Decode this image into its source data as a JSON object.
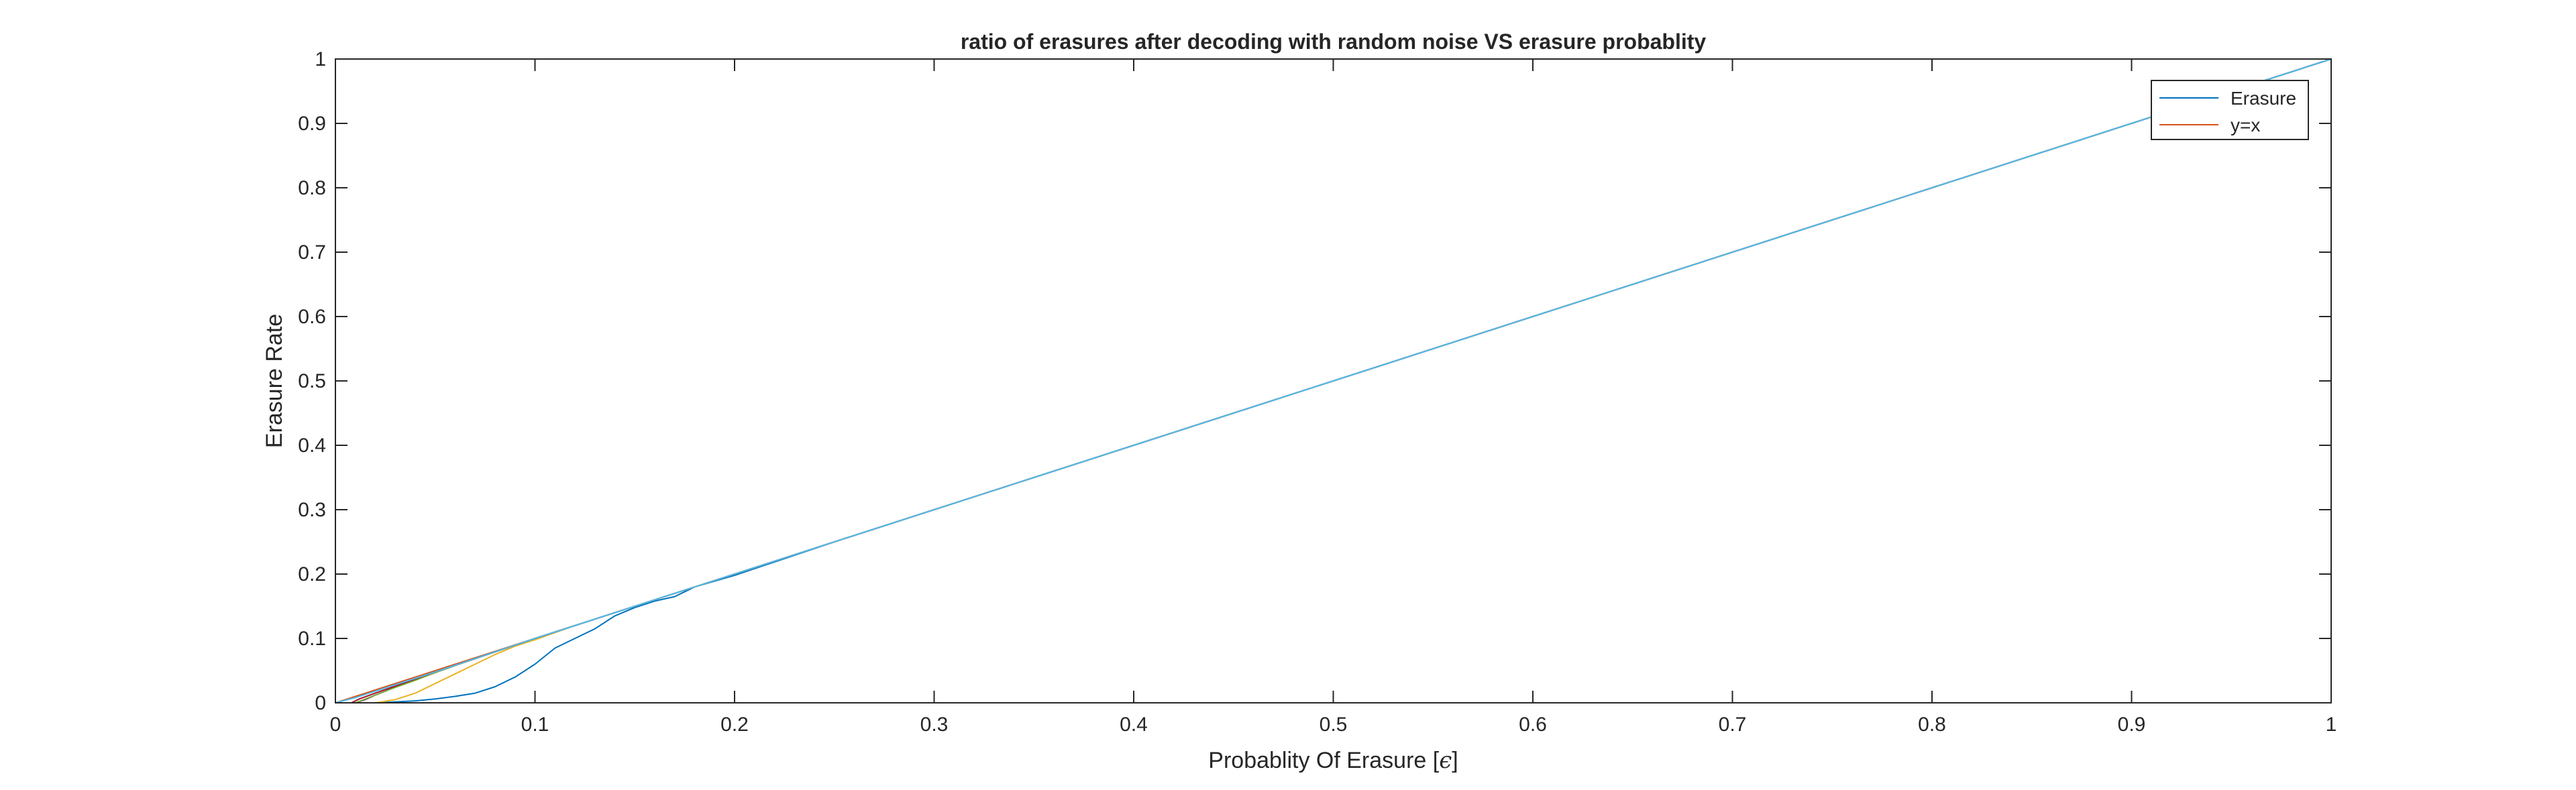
{
  "chart_data": {
    "type": "line",
    "title": "ratio of erasures after decoding with random noise VS erasure probablity",
    "xlabel": "Probablity Of Erasure [ε]",
    "xlabel_main": "Probablity Of Erasure [",
    "xlabel_symbol": "ϵ",
    "xlabel_end": "]",
    "ylabel": "Erasure Rate",
    "xlim": [
      0,
      1
    ],
    "ylim": [
      0,
      1
    ],
    "xticks": [
      "0",
      "0.1",
      "0.2",
      "0.3",
      "0.4",
      "0.5",
      "0.6",
      "0.7",
      "0.8",
      "0.9",
      "1"
    ],
    "yticks": [
      "0",
      "0.1",
      "0.2",
      "0.3",
      "0.4",
      "0.5",
      "0.6",
      "0.7",
      "0.8",
      "0.9",
      "1"
    ],
    "grid": false,
    "legend_position": "top-right",
    "legend": [
      {
        "label": "Erasure",
        "color": "#0072BD"
      },
      {
        "label": "y=x",
        "color": "#D95319"
      }
    ],
    "series": [
      {
        "name": "Erasure",
        "color": "#0072BD",
        "x": [
          0,
          0.02,
          0.04,
          0.05,
          0.06,
          0.07,
          0.08,
          0.09,
          0.1,
          0.11,
          0.12,
          0.13,
          0.14,
          0.15,
          0.16,
          0.17,
          0.18,
          0.2,
          0.25,
          0.3,
          0.4,
          0.5,
          0.6,
          0.7,
          0.8,
          0.9,
          1.0
        ],
        "y": [
          0,
          0,
          0.003,
          0.006,
          0.01,
          0.015,
          0.025,
          0.04,
          0.06,
          0.085,
          0.1,
          0.115,
          0.135,
          0.148,
          0.158,
          0.165,
          0.18,
          0.198,
          0.25,
          0.3,
          0.4,
          0.5,
          0.6,
          0.7,
          0.8,
          0.9,
          1.0
        ]
      },
      {
        "name": "y=x",
        "color": "#D95319",
        "x": [
          0,
          0.2,
          0.4,
          0.6,
          0.8,
          1.0
        ],
        "y": [
          0,
          0.2,
          0.4,
          0.6,
          0.8,
          1.0
        ]
      },
      {
        "color": "#EDB120",
        "x": [
          0,
          0.02,
          0.03,
          0.04,
          0.05,
          0.06,
          0.07,
          0.08,
          0.09,
          0.1,
          0.12,
          0.2,
          0.4,
          0.6,
          0.8,
          1.0
        ],
        "y": [
          0,
          0,
          0.005,
          0.015,
          0.03,
          0.045,
          0.06,
          0.075,
          0.088,
          0.098,
          0.12,
          0.2,
          0.4,
          0.6,
          0.8,
          1.0
        ]
      },
      {
        "color": "#7E2F8E",
        "x": [
          0,
          0.01,
          0.015,
          0.02,
          0.025,
          0.03,
          0.04,
          0.05,
          0.06,
          0.1,
          0.4,
          0.8,
          1.0
        ],
        "y": [
          0,
          0,
          0.005,
          0.012,
          0.018,
          0.025,
          0.036,
          0.047,
          0.058,
          0.1,
          0.4,
          0.8,
          1.0
        ]
      },
      {
        "color": "#77AC30",
        "x": [
          0,
          0.01,
          0.02,
          0.03,
          0.04,
          0.05,
          0.06,
          0.1,
          0.5,
          1.0
        ],
        "y": [
          0,
          0,
          0.012,
          0.024,
          0.035,
          0.047,
          0.058,
          0.1,
          0.5,
          1.0
        ]
      },
      {
        "color": "#A2142F",
        "x": [
          0,
          0.008,
          0.012,
          0.02,
          0.03,
          0.04,
          0.05,
          0.1,
          1.0
        ],
        "y": [
          0,
          0,
          0.006,
          0.015,
          0.026,
          0.037,
          0.048,
          0.1,
          1.0
        ]
      },
      {
        "color": "#4DBEEE",
        "x": [
          0,
          0.01,
          0.02,
          0.03,
          0.05,
          0.1,
          0.5,
          1.0
        ],
        "y": [
          0,
          0.008,
          0.018,
          0.028,
          0.048,
          0.1,
          0.5,
          1.0
        ]
      }
    ]
  }
}
